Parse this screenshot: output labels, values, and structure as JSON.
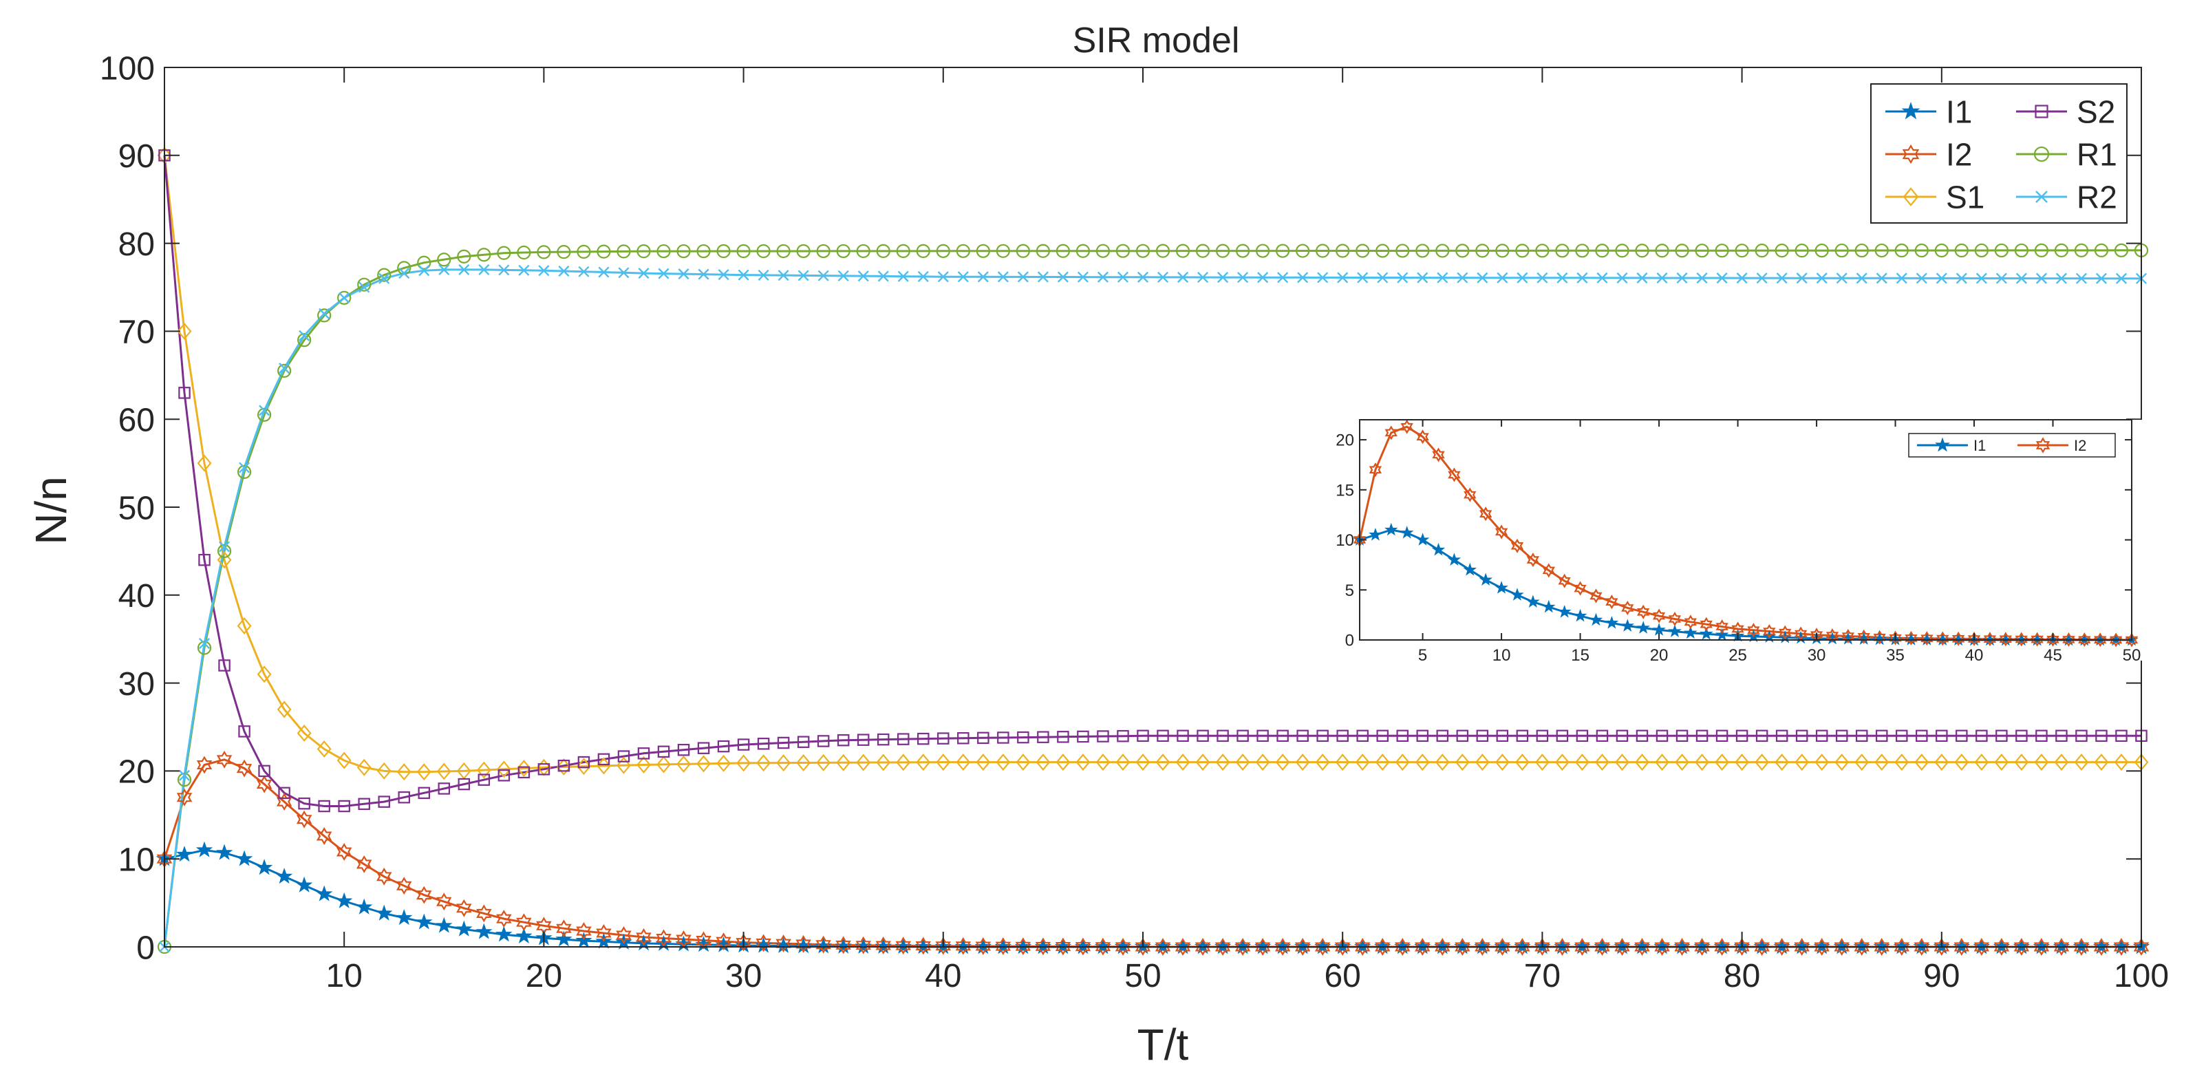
{
  "chart_data": [
    {
      "type": "line",
      "title": "SIR model",
      "xlabel": "T/t",
      "ylabel": "N/n",
      "xlim": [
        1,
        100
      ],
      "ylim": [
        0,
        100
      ],
      "xticks": [
        10,
        20,
        30,
        40,
        50,
        60,
        70,
        80,
        90,
        100
      ],
      "yticks": [
        0,
        10,
        20,
        30,
        40,
        50,
        60,
        70,
        80,
        90,
        100
      ],
      "grid": false,
      "legend": {
        "position": "top-right",
        "columns": 2,
        "entries": [
          "I1",
          "S2",
          "I2",
          "R1",
          "S1",
          "R2"
        ]
      },
      "x_range": {
        "start": 1,
        "end": 100,
        "step": 1
      },
      "series": [
        {
          "name": "I1",
          "color": "#0072BD",
          "marker": "star",
          "keypoints": [
            [
              1,
              10
            ],
            [
              2,
              10.5
            ],
            [
              3,
              11
            ],
            [
              4,
              10.7
            ],
            [
              5,
              10
            ],
            [
              6,
              9
            ],
            [
              7,
              8
            ],
            [
              8,
              7
            ],
            [
              9,
              6
            ],
            [
              10,
              5.2
            ],
            [
              12,
              3.8
            ],
            [
              14,
              2.8
            ],
            [
              16,
              2
            ],
            [
              18,
              1.4
            ],
            [
              20,
              1
            ],
            [
              22,
              0.7
            ],
            [
              25,
              0.4
            ],
            [
              30,
              0.15
            ],
            [
              35,
              0.05
            ],
            [
              40,
              0
            ],
            [
              100,
              0
            ]
          ]
        },
        {
          "name": "I2",
          "color": "#D95319",
          "marker": "hexagram",
          "keypoints": [
            [
              1,
              10
            ],
            [
              2,
              17
            ],
            [
              3,
              20.7
            ],
            [
              4,
              21.3
            ],
            [
              5,
              20.3
            ],
            [
              6,
              18.5
            ],
            [
              7,
              16.5
            ],
            [
              8,
              14.5
            ],
            [
              9,
              12.6
            ],
            [
              10,
              10.8
            ],
            [
              12,
              8
            ],
            [
              14,
              5.9
            ],
            [
              16,
              4.4
            ],
            [
              18,
              3.2
            ],
            [
              20,
              2.4
            ],
            [
              22,
              1.8
            ],
            [
              25,
              1.1
            ],
            [
              30,
              0.5
            ],
            [
              35,
              0.2
            ],
            [
              40,
              0.1
            ],
            [
              50,
              0
            ],
            [
              100,
              0
            ]
          ]
        },
        {
          "name": "S1",
          "color": "#EDB120",
          "marker": "diamond",
          "keypoints": [
            [
              1,
              90
            ],
            [
              2,
              70
            ],
            [
              3,
              55
            ],
            [
              4,
              44
            ],
            [
              5,
              36.5
            ],
            [
              6,
              31
            ],
            [
              7,
              27
            ],
            [
              8,
              24.3
            ],
            [
              9,
              22.5
            ],
            [
              10,
              21.2
            ],
            [
              11,
              20.4
            ],
            [
              12,
              20
            ],
            [
              13,
              19.9
            ],
            [
              14,
              19.9
            ],
            [
              16,
              20
            ],
            [
              18,
              20.2
            ],
            [
              20,
              20.4
            ],
            [
              25,
              20.7
            ],
            [
              30,
              20.9
            ],
            [
              40,
              21
            ],
            [
              100,
              21
            ]
          ]
        },
        {
          "name": "S2",
          "color": "#7E2F8E",
          "marker": "square",
          "keypoints": [
            [
              1,
              90
            ],
            [
              2,
              63
            ],
            [
              3,
              44
            ],
            [
              4,
              32
            ],
            [
              5,
              24.5
            ],
            [
              6,
              20
            ],
            [
              7,
              17.5
            ],
            [
              8,
              16.3
            ],
            [
              9,
              16
            ],
            [
              10,
              16
            ],
            [
              12,
              16.5
            ],
            [
              14,
              17.5
            ],
            [
              16,
              18.5
            ],
            [
              18,
              19.5
            ],
            [
              20,
              20.2
            ],
            [
              22,
              21
            ],
            [
              25,
              22
            ],
            [
              30,
              23
            ],
            [
              35,
              23.5
            ],
            [
              40,
              23.7
            ],
            [
              50,
              24
            ],
            [
              100,
              24
            ]
          ]
        },
        {
          "name": "R1",
          "color": "#77AC30",
          "marker": "circle",
          "keypoints": [
            [
              1,
              0
            ],
            [
              2,
              19
            ],
            [
              3,
              34
            ],
            [
              4,
              45
            ],
            [
              5,
              54
            ],
            [
              6,
              60.5
            ],
            [
              7,
              65.5
            ],
            [
              8,
              69
            ],
            [
              9,
              71.8
            ],
            [
              10,
              73.8
            ],
            [
              11,
              75.3
            ],
            [
              12,
              76.4
            ],
            [
              13,
              77.2
            ],
            [
              14,
              77.8
            ],
            [
              16,
              78.5
            ],
            [
              18,
              78.9
            ],
            [
              20,
              79
            ],
            [
              25,
              79.1
            ],
            [
              100,
              79.2
            ]
          ]
        },
        {
          "name": "R2",
          "color": "#4DBEEE",
          "marker": "x",
          "keypoints": [
            [
              1,
              0
            ],
            [
              2,
              19.5
            ],
            [
              3,
              34.5
            ],
            [
              4,
              45.5
            ],
            [
              5,
              54.5
            ],
            [
              6,
              61
            ],
            [
              7,
              65.8
            ],
            [
              8,
              69.5
            ],
            [
              9,
              72
            ],
            [
              10,
              73.8
            ],
            [
              11,
              75
            ],
            [
              12,
              76
            ],
            [
              13,
              76.6
            ],
            [
              14,
              76.9
            ],
            [
              15,
              77
            ],
            [
              17,
              77
            ],
            [
              20,
              76.9
            ],
            [
              25,
              76.6
            ],
            [
              30,
              76.4
            ],
            [
              40,
              76.2
            ],
            [
              60,
              76.1
            ],
            [
              100,
              76
            ]
          ]
        }
      ]
    },
    {
      "type": "line",
      "title": "",
      "xlabel": "",
      "ylabel": "",
      "xlim": [
        1,
        50
      ],
      "ylim": [
        0,
        22
      ],
      "xticks": [
        5,
        10,
        15,
        20,
        25,
        30,
        35,
        40,
        45,
        50
      ],
      "yticks": [
        0,
        5,
        10,
        15,
        20
      ],
      "grid": false,
      "legend": {
        "position": "top-right",
        "columns": 2,
        "entries": [
          "I1",
          "I2"
        ]
      },
      "x_range": {
        "start": 1,
        "end": 50,
        "step": 1
      },
      "series": [
        {
          "name": "I1",
          "color": "#0072BD",
          "marker": "star",
          "keypoints": [
            [
              1,
              10
            ],
            [
              2,
              10.5
            ],
            [
              3,
              11
            ],
            [
              4,
              10.7
            ],
            [
              5,
              10
            ],
            [
              6,
              9
            ],
            [
              7,
              8
            ],
            [
              8,
              7
            ],
            [
              9,
              6
            ],
            [
              10,
              5.2
            ],
            [
              12,
              3.8
            ],
            [
              14,
              2.8
            ],
            [
              16,
              2
            ],
            [
              18,
              1.4
            ],
            [
              20,
              1
            ],
            [
              22,
              0.7
            ],
            [
              25,
              0.4
            ],
            [
              30,
              0.15
            ],
            [
              35,
              0.05
            ],
            [
              40,
              0
            ],
            [
              50,
              0
            ]
          ]
        },
        {
          "name": "I2",
          "color": "#D95319",
          "marker": "hexagram",
          "keypoints": [
            [
              1,
              10
            ],
            [
              2,
              17
            ],
            [
              3,
              20.7
            ],
            [
              4,
              21.3
            ],
            [
              5,
              20.3
            ],
            [
              6,
              18.5
            ],
            [
              7,
              16.5
            ],
            [
              8,
              14.5
            ],
            [
              9,
              12.6
            ],
            [
              10,
              10.8
            ],
            [
              12,
              8
            ],
            [
              14,
              5.9
            ],
            [
              16,
              4.4
            ],
            [
              18,
              3.2
            ],
            [
              20,
              2.4
            ],
            [
              22,
              1.8
            ],
            [
              25,
              1.1
            ],
            [
              30,
              0.5
            ],
            [
              35,
              0.2
            ],
            [
              40,
              0.1
            ],
            [
              50,
              0
            ]
          ]
        }
      ]
    }
  ]
}
